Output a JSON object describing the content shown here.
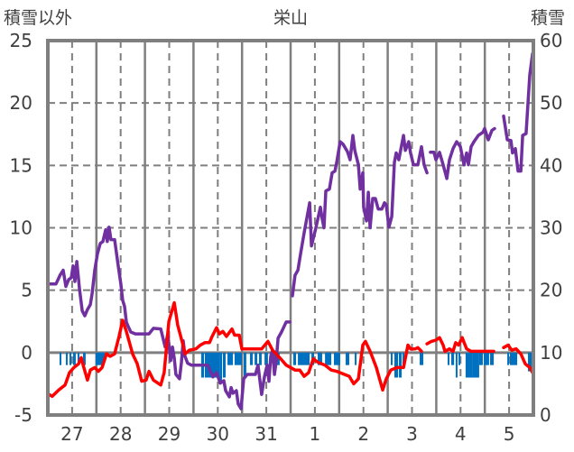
{
  "chart_data": {
    "type": "line",
    "title": "栄山",
    "ylabel_left": "積雪以外",
    "ylabel_right": "積雪",
    "ylim_left": [
      -5,
      25
    ],
    "ylim_right": [
      0,
      60
    ],
    "yticks_left": [
      "25",
      "20",
      "15",
      "10",
      "5",
      "0",
      "-5"
    ],
    "yticks_right": [
      "60",
      "50",
      "40",
      "30",
      "20",
      "10",
      "0"
    ],
    "yticks_left_values": [
      25,
      20,
      15,
      10,
      5,
      0,
      -5
    ],
    "yticks_right_values": [
      60,
      50,
      40,
      30,
      20,
      10,
      0
    ],
    "x_unit": "hours from day 27 00:00",
    "xlim": [
      0,
      240
    ],
    "day_labels": [
      "27",
      "28",
      "29",
      "30",
      "31",
      "1",
      "2",
      "3",
      "4",
      "5"
    ],
    "grid": true,
    "colors": {
      "snow_depth": "#7030a0",
      "temperature": "#ff0000",
      "bars": "#0070c0",
      "axis": "#7f7f7f",
      "text": "#404040"
    },
    "series": [
      {
        "name": "snow_depth",
        "axis": "right",
        "points": [
          [
            1,
            21.0
          ],
          [
            4,
            21.0
          ],
          [
            6,
            22.4
          ],
          [
            7.6,
            23.2
          ],
          [
            8.9,
            20.6
          ],
          [
            10.3,
            21.7
          ],
          [
            11.6,
            22.0
          ],
          [
            12.5,
            23.9
          ],
          [
            13.4,
            21.4
          ],
          [
            14.3,
            24.6
          ],
          [
            15.6,
            20.3
          ],
          [
            17,
            16.7
          ],
          [
            18.3,
            15.9
          ],
          [
            19.6,
            16.9
          ],
          [
            21,
            17.7
          ],
          [
            21.9,
            19.5
          ],
          [
            23.2,
            23.2
          ],
          [
            24.5,
            25.8
          ],
          [
            25.9,
            27.5
          ],
          [
            27.2,
            27.8
          ],
          [
            28.6,
            29.7
          ],
          [
            29.4,
            27.8
          ],
          [
            30.3,
            30.1
          ],
          [
            31.2,
            28.1
          ],
          [
            33,
            28.1
          ],
          [
            34.8,
            23.9
          ],
          [
            36.1,
            21.0
          ],
          [
            37,
            18.4
          ],
          [
            37.9,
            17.4
          ],
          [
            38.8,
            14.9
          ],
          [
            39.7,
            14.2
          ],
          [
            41,
            13.3
          ],
          [
            43.3,
            13.0
          ],
          [
            50,
            13.0
          ],
          [
            52.2,
            13.9
          ],
          [
            55.8,
            13.8
          ],
          [
            58,
            10.9
          ],
          [
            59.3,
            13.0
          ],
          [
            60.7,
            8.7
          ],
          [
            61.6,
            10.9
          ],
          [
            62.5,
            9.1
          ],
          [
            63.3,
            6.5
          ],
          [
            65.1,
            5.8
          ],
          [
            66,
            8.4
          ],
          [
            66.9,
            11.9
          ],
          [
            67.8,
            9.4
          ],
          [
            69.1,
            8.3
          ],
          [
            70.9,
            8.0
          ],
          [
            79,
            8.0
          ],
          [
            81.6,
            6.1
          ],
          [
            83.4,
            6.8
          ],
          [
            85.2,
            5.1
          ],
          [
            87,
            5.5
          ],
          [
            87.9,
            3.9
          ],
          [
            89.7,
            2.9
          ],
          [
            90.6,
            4.4
          ],
          [
            91.5,
            3.5
          ],
          [
            93.2,
            3.9
          ],
          [
            94.1,
            1.8
          ],
          [
            95.5,
            1.0
          ],
          [
            96.8,
            5.8
          ],
          [
            98.6,
            6.5
          ],
          [
            102.6,
            6.5
          ],
          [
            103.9,
            8.0
          ],
          [
            105.7,
            3.3
          ],
          [
            107.1,
            6.2
          ],
          [
            108.4,
            8.0
          ],
          [
            109.3,
            5.4
          ],
          [
            110.2,
            9.4
          ],
          [
            111.1,
            10.4
          ],
          [
            112,
            6.5
          ],
          [
            112.9,
            8.7
          ],
          [
            113.8,
            12.3
          ],
          [
            115.5,
            13.3
          ],
          [
            117.8,
            14.9
          ],
          [
            119.6,
            14.9
          ],
          null,
          [
            120.9,
            19.1
          ],
          [
            122.2,
            22.4
          ],
          [
            123.6,
            23.2
          ],
          [
            124.9,
            25.8
          ],
          [
            126.7,
            29.2
          ],
          [
            129.4,
            34.0
          ],
          [
            130.3,
            27.1
          ],
          [
            132.5,
            30.0
          ],
          [
            134.7,
            33.3
          ],
          [
            135.6,
            31.4
          ],
          [
            136.5,
            30.0
          ],
          [
            137.4,
            35.9
          ],
          [
            139.2,
            36.2
          ],
          [
            140.5,
            38.8
          ],
          [
            141.9,
            39.1
          ],
          [
            142.8,
            40.5
          ],
          [
            144.5,
            43.8
          ],
          [
            145.9,
            43.4
          ],
          [
            148.1,
            42.2
          ],
          [
            149.4,
            40.9
          ],
          [
            150.8,
            44.8
          ],
          [
            151.7,
            42.4
          ],
          [
            153.5,
            40.1
          ],
          [
            154.4,
            36.2
          ],
          [
            155.7,
            38.8
          ],
          [
            156.1,
            33.3
          ],
          [
            157.5,
            31.1
          ],
          [
            158.4,
            35.7
          ],
          [
            159.3,
            30.0
          ],
          [
            160.6,
            34.7
          ],
          [
            161.9,
            34.7
          ],
          [
            163.3,
            33.0
          ],
          [
            165.1,
            33.0
          ],
          [
            166.4,
            34.0
          ],
          [
            167.3,
            33.7
          ],
          [
            168.6,
            30.1
          ],
          [
            170,
            31.8
          ],
          [
            171.3,
            40.5
          ],
          [
            172.2,
            42.0
          ],
          [
            173.5,
            40.9
          ],
          [
            175.8,
            44.8
          ],
          [
            176.7,
            42.4
          ],
          [
            178.4,
            43.8
          ],
          [
            179.3,
            42.0
          ],
          [
            180.7,
            40.1
          ],
          [
            182.9,
            40.1
          ],
          [
            184.7,
            43.0
          ],
          [
            186,
            40.1
          ],
          [
            187.4,
            38.8
          ],
          null,
          [
            189.1,
            42.1
          ],
          [
            190.9,
            42.1
          ],
          [
            191.8,
            40.9
          ],
          [
            193.6,
            42.1
          ],
          [
            195.4,
            40.1
          ],
          [
            197.2,
            37.9
          ],
          [
            198.5,
            40.9
          ],
          [
            200.3,
            42.7
          ],
          [
            202.1,
            43.8
          ],
          [
            203.9,
            43.0
          ],
          [
            205.7,
            40.1
          ],
          [
            207,
            42.0
          ],
          [
            207.9,
            40.1
          ],
          [
            209.2,
            43.0
          ],
          [
            210.6,
            43.8
          ],
          [
            212.8,
            44.8
          ],
          [
            215,
            45.3
          ],
          [
            215.9,
            45.9
          ],
          [
            217.7,
            44.1
          ],
          [
            219.5,
            45.6
          ],
          [
            220.8,
            45.9
          ],
          null,
          [
            225.3,
            47.9
          ],
          [
            227.1,
            44.1
          ],
          [
            228.9,
            44.0
          ],
          [
            229.7,
            42.0
          ],
          [
            231.1,
            42.7
          ],
          [
            232.4,
            39.1
          ],
          [
            233.8,
            39.1
          ],
          [
            234.7,
            44.8
          ],
          [
            236.4,
            45.1
          ],
          [
            238.2,
            54.5
          ],
          [
            239.6,
            57.9
          ]
        ]
      },
      {
        "name": "temperature",
        "axis": "left",
        "points": [
          [
            0,
            -3.3
          ],
          [
            2.2,
            -3.5
          ],
          [
            5.4,
            -3.0
          ],
          [
            8.5,
            -2.6
          ],
          [
            10.7,
            -1.6
          ],
          [
            12.9,
            -1.2
          ],
          [
            15.2,
            -0.9
          ],
          [
            16.5,
            -0.4
          ],
          [
            17.8,
            -1.2
          ],
          [
            19.6,
            -2.2
          ],
          [
            21,
            -1.4
          ],
          [
            23.2,
            -1.2
          ],
          [
            25,
            -1.5
          ],
          [
            26.8,
            -1.2
          ],
          [
            29,
            -0.1
          ],
          [
            30.8,
            -0.3
          ],
          [
            33,
            -0.1
          ],
          [
            35.2,
            1.3
          ],
          [
            37,
            2.6
          ],
          [
            38.8,
            1.7
          ],
          [
            41.9,
            -0.1
          ],
          [
            44.2,
            -0.9
          ],
          [
            46.4,
            -2.3
          ],
          [
            48.6,
            -2.2
          ],
          [
            50,
            -1.5
          ],
          [
            52.2,
            -2.2
          ],
          [
            55.8,
            -2.6
          ],
          [
            57.5,
            -1.6
          ],
          [
            59.8,
            2.5
          ],
          [
            62.5,
            4.0
          ],
          [
            64.2,
            2.2
          ],
          [
            66.5,
            0.8
          ],
          [
            67.8,
            -0.1
          ],
          [
            70,
            0.2
          ],
          [
            73.2,
            0.3
          ],
          [
            75.4,
            0.6
          ],
          [
            77.6,
            0.8
          ],
          [
            79.9,
            0.8
          ],
          [
            81.2,
            1.3
          ],
          [
            83.4,
            2.0
          ],
          [
            84.8,
            1.5
          ],
          [
            86.5,
            1.7
          ],
          [
            88.3,
            1.3
          ],
          [
            91,
            1.9
          ],
          [
            92.3,
            1.4
          ],
          [
            94.6,
            1.4
          ],
          [
            95.9,
            0.3
          ],
          [
            102.6,
            0.3
          ],
          [
            105.7,
            0.3
          ],
          [
            108.8,
            0.9
          ],
          [
            111.1,
            0.2
          ],
          [
            114.6,
            -0.4
          ],
          [
            117.8,
            -1.0
          ],
          [
            122.2,
            -1.4
          ],
          [
            124.5,
            -1.4
          ],
          [
            126.7,
            -1.9
          ],
          [
            128.9,
            -1.6
          ],
          [
            131.2,
            -0.5
          ],
          [
            133.8,
            -0.8
          ],
          [
            137,
            -1.0
          ],
          [
            140.1,
            -1.4
          ],
          [
            142.8,
            -1.5
          ],
          [
            145.9,
            -1.7
          ],
          [
            149,
            -1.9
          ],
          [
            151.2,
            -2.5
          ],
          [
            153.5,
            -2.1
          ],
          [
            155.7,
            0.6
          ],
          [
            157,
            0.9
          ],
          [
            159.3,
            0.1
          ],
          [
            162.4,
            -1.2
          ],
          [
            165.5,
            -3.0
          ],
          [
            167.3,
            -2.1
          ],
          [
            169.5,
            -1.4
          ],
          [
            172.6,
            -1.2
          ],
          [
            175.8,
            -1.2
          ],
          [
            178,
            0.6
          ],
          [
            179.3,
            0.3
          ],
          [
            181.6,
            0.3
          ],
          [
            182.9,
            0.4
          ],
          [
            184.7,
            0.1
          ],
          null,
          [
            187.4,
            0.7
          ],
          [
            189.6,
            0.9
          ],
          [
            191.8,
            1.0
          ],
          [
            193.6,
            1.2
          ],
          [
            195.4,
            0.6
          ],
          [
            196.3,
            0.1
          ],
          [
            198.5,
            0.3
          ],
          [
            200.3,
            0.1
          ],
          [
            201.6,
            0.8
          ],
          [
            203,
            0.6
          ],
          [
            204.8,
            1.2
          ],
          [
            207,
            0.3
          ],
          [
            209.2,
            0.1
          ],
          [
            213.7,
            0.1
          ],
          [
            220.4,
            0.1
          ],
          null,
          [
            225.3,
            0.4
          ],
          [
            227.5,
            0.6
          ],
          [
            229.3,
            0.2
          ],
          [
            231.5,
            0.3
          ],
          [
            233.8,
            -0.1
          ],
          [
            236,
            -0.9
          ],
          [
            238.2,
            -1.2
          ],
          [
            239.6,
            -1.6
          ]
        ]
      }
    ],
    "bars": {
      "name": "hourly_bars",
      "axis": "left",
      "direction": "down_from_zero",
      "runs": [
        [
          5.8,
          6.7,
          1
        ],
        [
          8.9,
          9.8,
          1
        ],
        [
          10.7,
          11.6,
          1
        ],
        [
          12.5,
          13.8,
          1
        ],
        [
          14.7,
          15.6,
          1
        ],
        [
          17.4,
          18.7,
          1
        ],
        [
          23.6,
          28.1,
          1
        ],
        [
          75.8,
          77.2,
          2
        ],
        [
          77.6,
          84.8,
          2
        ],
        [
          84.8,
          86.1,
          2.5
        ],
        [
          86.5,
          87.9,
          2
        ],
        [
          88.8,
          91.5,
          1
        ],
        [
          92.3,
          95.9,
          1
        ],
        [
          96.8,
          98.1,
          2
        ],
        [
          99.9,
          101.3,
          1
        ],
        [
          102.2,
          103.5,
          1
        ],
        [
          104.4,
          105.7,
          1
        ],
        [
          107.1,
          108.8,
          1
        ],
        [
          111.1,
          114.6,
          1
        ],
        [
          121.3,
          122.7,
          1
        ],
        [
          123.6,
          129.4,
          1
        ],
        [
          130.3,
          131.6,
          1
        ],
        [
          133.4,
          135.6,
          1
        ],
        [
          137,
          140.1,
          1
        ],
        [
          141.4,
          144.5,
          1
        ],
        [
          147.2,
          149,
          1
        ],
        [
          151.7,
          152.6,
          1
        ],
        [
          169.5,
          170.4,
          1
        ],
        [
          171.3,
          173.1,
          2
        ],
        [
          173.5,
          174.9,
          2
        ],
        [
          175.3,
          175.8,
          1
        ],
        [
          183.8,
          185.6,
          1
        ],
        [
          197.6,
          198.5,
          1
        ],
        [
          199.4,
          200.8,
          1
        ],
        [
          201.6,
          202.5,
          2
        ],
        [
          203,
          203.9,
          1
        ],
        [
          206.5,
          209.7,
          2
        ],
        [
          209.7,
          213.2,
          2
        ],
        [
          213.2,
          215,
          1
        ],
        [
          215.5,
          218.1,
          1
        ],
        [
          218.6,
          220.4,
          1
        ],
        [
          227.1,
          228,
          1
        ],
        [
          228.4,
          232,
          1
        ],
        [
          237.3,
          239.6,
          1.5
        ]
      ]
    }
  }
}
